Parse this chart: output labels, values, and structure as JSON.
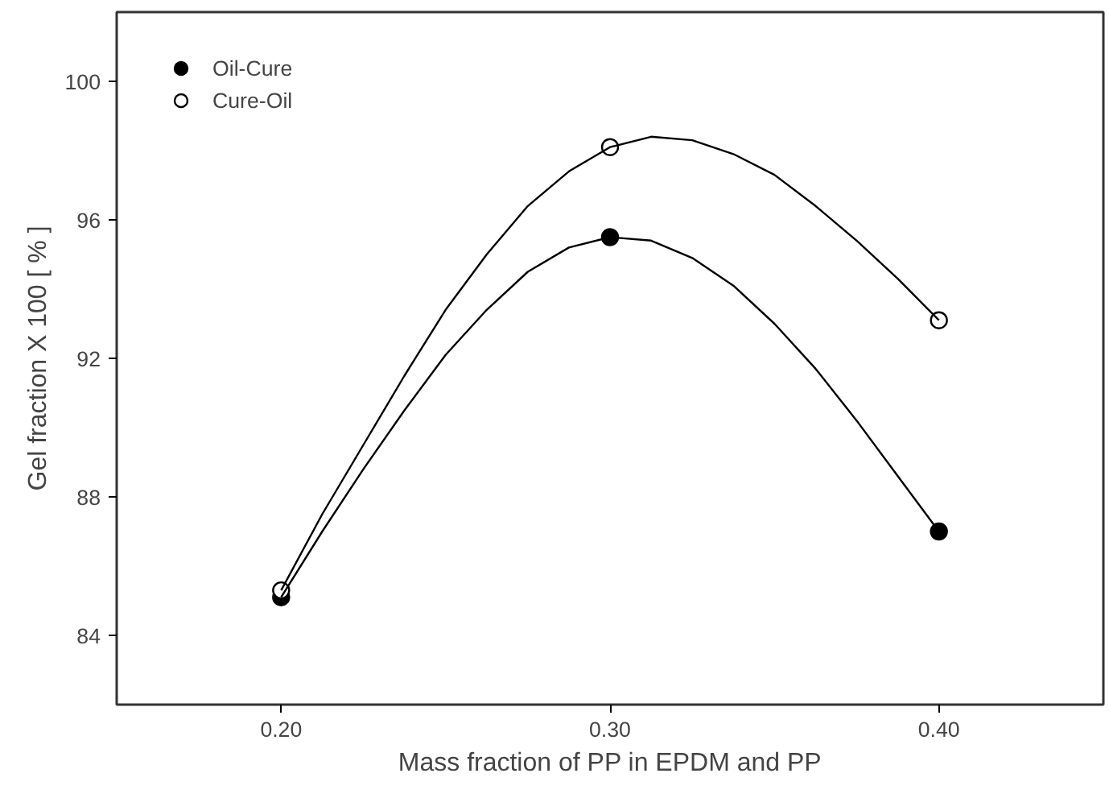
{
  "chart_data": {
    "type": "scatter",
    "xlabel": "Mass fraction of PP in EPDM and PP",
    "ylabel": "Gel fraction X 100 [ % ]",
    "x": [
      0.2,
      0.3,
      0.4
    ],
    "series": [
      {
        "name": "Oil-Cure",
        "color": "#000000",
        "marker": "circle",
        "values": [
          85.1,
          95.5,
          87.0
        ]
      },
      {
        "name": "Cure-Oil",
        "color": "#ffffff",
        "marker": "circle",
        "values": [
          85.3,
          98.1,
          93.1
        ]
      },
      {
        "type": "line",
        "color": "#000000",
        "marker": "none",
        "x": [
          0.2,
          0.2125,
          0.225,
          0.2375,
          0.25,
          0.2625,
          0.275,
          0.2875,
          0.3,
          0.3125,
          0.325,
          0.3375,
          0.35,
          0.3625,
          0.375,
          0.3875,
          0.4
        ],
        "values": [
          85.1,
          87.0,
          88.8,
          90.5,
          92.1,
          93.4,
          94.5,
          95.2,
          95.5,
          95.4,
          94.9,
          94.1,
          93.0,
          91.7,
          90.2,
          88.6,
          87.0
        ]
      },
      {
        "type": "line",
        "color": "#000000",
        "marker": "none",
        "x": [
          0.2,
          0.2125,
          0.225,
          0.2375,
          0.25,
          0.2625,
          0.275,
          0.2875,
          0.3,
          0.3125,
          0.325,
          0.3375,
          0.35,
          0.3625,
          0.375,
          0.3875,
          0.4
        ],
        "values": [
          85.3,
          87.5,
          89.5,
          91.5,
          93.4,
          95.0,
          96.4,
          97.4,
          98.1,
          98.4,
          98.3,
          97.9,
          97.3,
          96.4,
          95.4,
          94.3,
          93.1
        ]
      }
    ],
    "xlim": [
      0.15,
      0.45
    ],
    "ylim": [
      82,
      102
    ],
    "xticks": [
      {
        "value": 0.2,
        "label": "0.20"
      },
      {
        "value": 0.3,
        "label": "0.30"
      },
      {
        "value": 0.4,
        "label": "0.40"
      }
    ],
    "yticks": [
      84,
      88,
      92,
      96,
      100
    ],
    "grid": false,
    "legend": "top left",
    "line_style": "solid"
  }
}
